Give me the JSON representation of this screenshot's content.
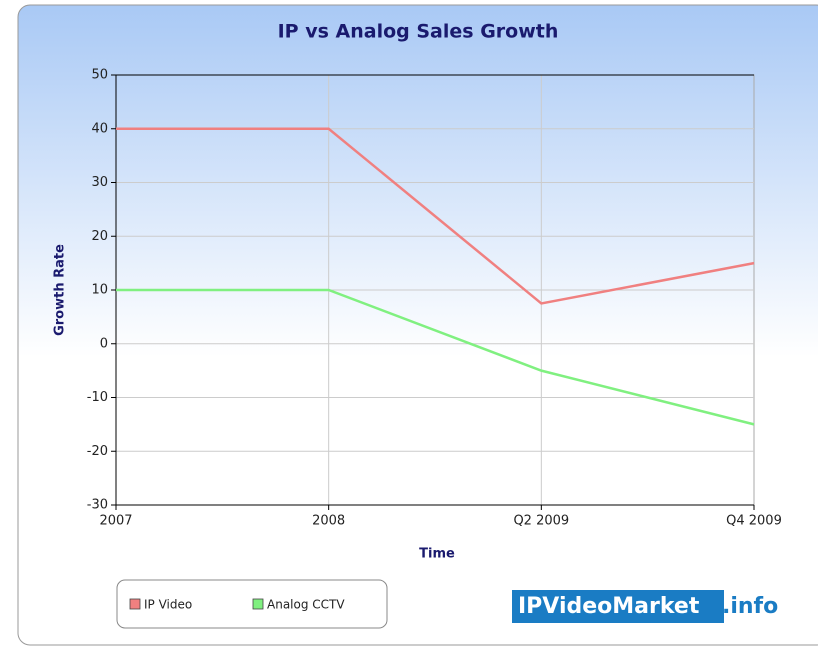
{
  "chart_data": {
    "type": "line",
    "title": "IP vs Analog Sales Growth",
    "x_label": "Time",
    "y_label": "Growth Rate",
    "categories": [
      "2007",
      "2008",
      "Q2 2009",
      "Q4 2009"
    ],
    "series": [
      {
        "name": "IP Video",
        "color": "#f08080",
        "values": [
          40,
          40,
          7.5,
          15
        ]
      },
      {
        "name": "Analog CCTV",
        "color": "#80f080",
        "values": [
          10,
          10,
          -5,
          -15
        ]
      }
    ],
    "ylim": [
      -30,
      50
    ],
    "yticks": [
      -30,
      -20,
      -10,
      0,
      10,
      20,
      30,
      40,
      50
    ],
    "grid": true,
    "legend": "bottom-left"
  },
  "brand": {
    "name": "IPVideoMarket",
    "suffix": ".info"
  }
}
